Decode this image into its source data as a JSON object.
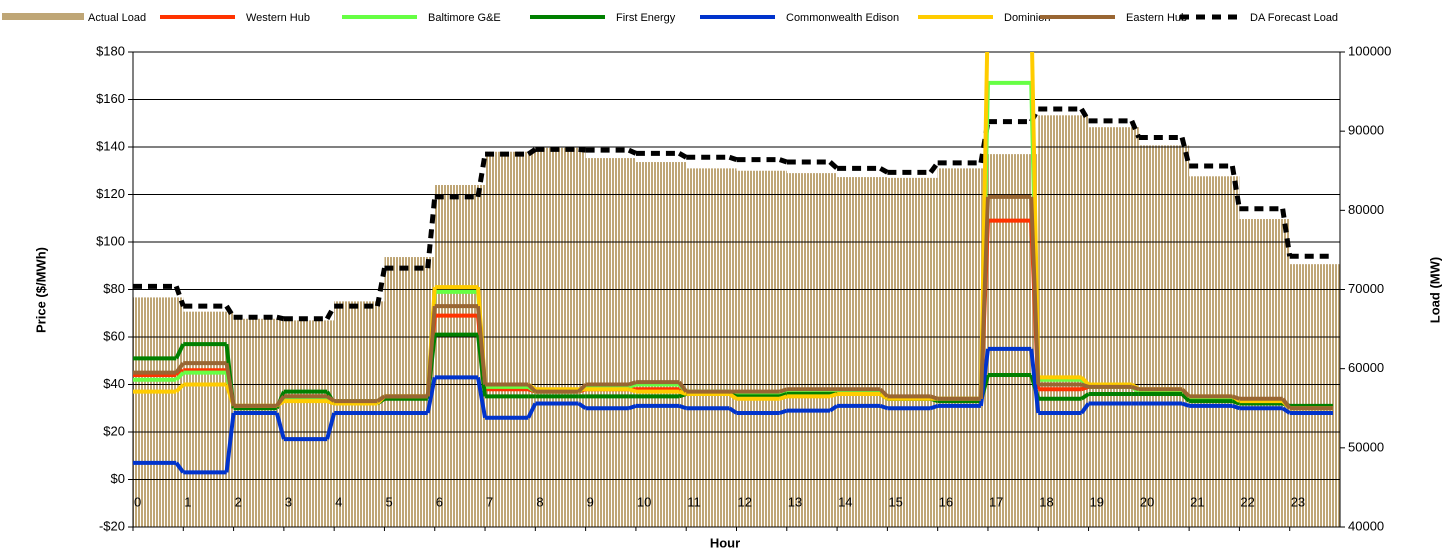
{
  "chart_data": {
    "type": "combo",
    "x_label": "Hour",
    "y_label": "Price ($/MWh)",
    "y2_label": "Load (MW)",
    "x": [
      0,
      1,
      2,
      3,
      4,
      5,
      6,
      7,
      8,
      9,
      10,
      11,
      12,
      13,
      14,
      15,
      16,
      17,
      18,
      19,
      20,
      21,
      22,
      23
    ],
    "xlim": [
      0,
      24
    ],
    "xticks": [
      0,
      1,
      2,
      3,
      4,
      5,
      6,
      7,
      8,
      9,
      10,
      11,
      12,
      13,
      14,
      15,
      16,
      17,
      18,
      19,
      20,
      21,
      22,
      23
    ],
    "ylim": [
      -20,
      180
    ],
    "yticks": [
      {
        "value": -20,
        "label": "-$20"
      },
      {
        "value": 0,
        "label": "$0"
      },
      {
        "value": 20,
        "label": "$20"
      },
      {
        "value": 40,
        "label": "$40"
      },
      {
        "value": 60,
        "label": "$60"
      },
      {
        "value": 80,
        "label": "$80"
      },
      {
        "value": 100,
        "label": "$100"
      },
      {
        "value": 120,
        "label": "$120"
      },
      {
        "value": 140,
        "label": "$140"
      },
      {
        "value": 160,
        "label": "$160"
      },
      {
        "value": 180,
        "label": "$180"
      }
    ],
    "y2lim": [
      40000,
      100000
    ],
    "y2ticks": [
      40000,
      50000,
      60000,
      70000,
      80000,
      90000,
      100000
    ],
    "grid": true,
    "legend": "top",
    "series": [
      {
        "name": "Actual Load",
        "type": "bar",
        "axis": "y2",
        "color": "#bfa676",
        "values": [
          69000,
          67200,
          66300,
          66100,
          68500,
          74100,
          83200,
          87400,
          87900,
          86600,
          86100,
          85300,
          85000,
          84700,
          84200,
          84100,
          85300,
          87100,
          92000,
          90500,
          88200,
          84300,
          78900,
          73200
        ]
      },
      {
        "name": "Western Hub",
        "type": "line",
        "color": "#ff3300",
        "values": [
          44,
          46,
          31,
          35,
          33,
          35,
          69,
          38,
          37,
          38,
          38,
          36,
          36,
          37,
          37,
          34,
          34,
          109,
          38,
          39,
          37,
          34,
          33,
          30
        ]
      },
      {
        "name": "Baltimore G&E",
        "type": "line",
        "color": "#66ff44",
        "values": [
          42,
          45,
          31,
          34,
          33,
          35,
          79,
          39,
          37,
          39,
          40,
          37,
          36,
          37,
          37,
          34,
          34,
          167,
          42,
          39,
          37,
          34,
          33,
          30
        ]
      },
      {
        "name": "First Energy",
        "type": "line",
        "color": "#008000",
        "values": [
          51,
          57,
          30,
          37,
          32,
          34,
          61,
          35,
          35,
          35,
          35,
          36,
          35,
          36,
          36,
          34,
          33,
          44,
          34,
          36,
          36,
          33,
          32,
          31
        ]
      },
      {
        "name": "Commonwealth Edison",
        "type": "line",
        "color": "#0033cc",
        "values": [
          7,
          3,
          28,
          17,
          28,
          28,
          43,
          26,
          32,
          30,
          31,
          30,
          28,
          29,
          31,
          30,
          31,
          55,
          28,
          32,
          32,
          31,
          30,
          28
        ]
      },
      {
        "name": "Dominion",
        "type": "line",
        "color": "#ffcc00",
        "values": [
          37,
          40,
          31,
          33,
          32,
          35,
          81,
          40,
          38,
          38,
          37,
          36,
          34,
          35,
          36,
          34,
          34,
          200,
          43,
          40,
          38,
          35,
          33,
          30
        ]
      },
      {
        "name": "Eastern Hub",
        "type": "line",
        "color": "#996633",
        "values": [
          45,
          49,
          31,
          35,
          33,
          35,
          73,
          40,
          37,
          40,
          41,
          37,
          37,
          38,
          38,
          35,
          34,
          119,
          40,
          39,
          38,
          35,
          34,
          30
        ]
      },
      {
        "name": "DA Forecast Load",
        "type": "dashed",
        "axis": "y2",
        "color": "#000000",
        "values": [
          70400,
          67900,
          66500,
          66300,
          67900,
          72700,
          81700,
          87100,
          87700,
          87600,
          87200,
          86700,
          86400,
          86100,
          85300,
          84800,
          86000,
          91200,
          92800,
          91300,
          89200,
          85600,
          80200,
          74200
        ]
      }
    ]
  }
}
